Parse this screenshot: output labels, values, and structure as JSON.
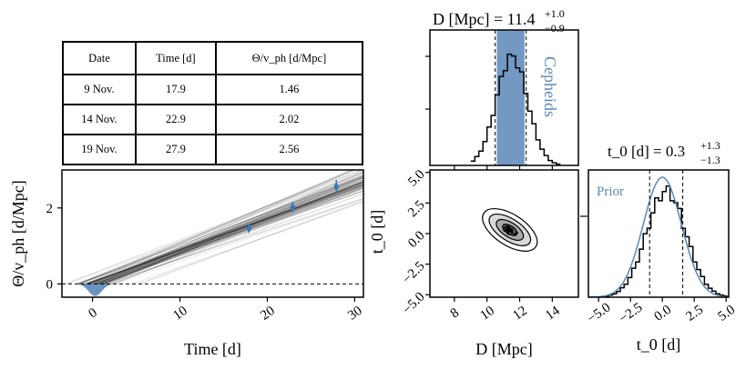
{
  "table": {
    "headers": [
      "Date",
      "Time [d]",
      "Θ/v_ph [d/Mpc]"
    ],
    "rows": [
      [
        "9 Nov.",
        "17.9",
        "1.46"
      ],
      [
        "14 Nov.",
        "22.9",
        "2.02"
      ],
      [
        "19 Nov.",
        "27.9",
        "2.56"
      ]
    ]
  },
  "chart_data": [
    {
      "type": "line",
      "id": "theta-vs-time",
      "xlabel": "Time [d]",
      "ylabel": "Θ/v_ph [d/Mpc]",
      "xlim": [
        -3.5,
        31
      ],
      "ylim": [
        -0.35,
        3.0
      ],
      "xticks": [
        0,
        10,
        20,
        30
      ],
      "yticks": [
        0,
        2
      ],
      "observations": [
        {
          "x": 17.9,
          "y": 1.46,
          "yerr": 0.12
        },
        {
          "x": 22.9,
          "y": 2.02,
          "yerr": 0.14
        },
        {
          "x": 27.9,
          "y": 2.56,
          "yerr": 0.18
        }
      ],
      "model_t0": 0.3,
      "model_distance_mpc": 11.4,
      "reference_line_y": 0
    },
    {
      "type": "bar",
      "id": "distance-histogram",
      "title": "D [Mpc] = 11.4",
      "title_sup": "+1.0",
      "title_sub": "−0.9",
      "xlabel": "D [Mpc]",
      "xlim": [
        6.5,
        15.6
      ],
      "xticks": [
        8,
        10,
        12,
        14
      ],
      "median": 11.4,
      "quantiles": [
        10.5,
        12.4
      ],
      "band_label": "Cepheids",
      "band": [
        10.6,
        12.3
      ],
      "band_color": "#5b87b8"
    },
    {
      "type": "heatmap",
      "id": "joint-posterior",
      "xlabel": "D [Mpc]",
      "ylabel": "t_0 [d]",
      "xlim": [
        6.5,
        15.6
      ],
      "ylim": [
        -5.2,
        5.2
      ],
      "xticks": [
        8,
        10,
        12,
        14
      ],
      "yticks": [
        -5.0,
        -2.5,
        0.0,
        2.5,
        5.0
      ],
      "ytick_labels": [
        "−5.0",
        "−2.5",
        "0.0",
        "2.5",
        "5.0"
      ],
      "center": [
        11.4,
        0.3
      ]
    },
    {
      "type": "bar",
      "id": "t0-histogram",
      "title": "t_0 [d] = 0.3",
      "title_sup": "+1.3",
      "title_sub": "−1.3",
      "xlabel": "t_0 [d]",
      "xlim": [
        -5.8,
        5.2
      ],
      "xticks": [
        -5.0,
        -2.5,
        0.0,
        2.5,
        5.0
      ],
      "xtick_labels": [
        "−5.0",
        "−2.5",
        "0.0",
        "2.5",
        "5.0"
      ],
      "median": 0.3,
      "quantiles": [
        -1.0,
        1.6
      ],
      "prior_label": "Prior",
      "prior_mean": 0.0,
      "prior_sigma": 1.5,
      "prior_color": "#5b87b8"
    }
  ],
  "colors": {
    "accent": "#3a78b5",
    "prior": "#5b87b8",
    "axis": "#000000"
  }
}
